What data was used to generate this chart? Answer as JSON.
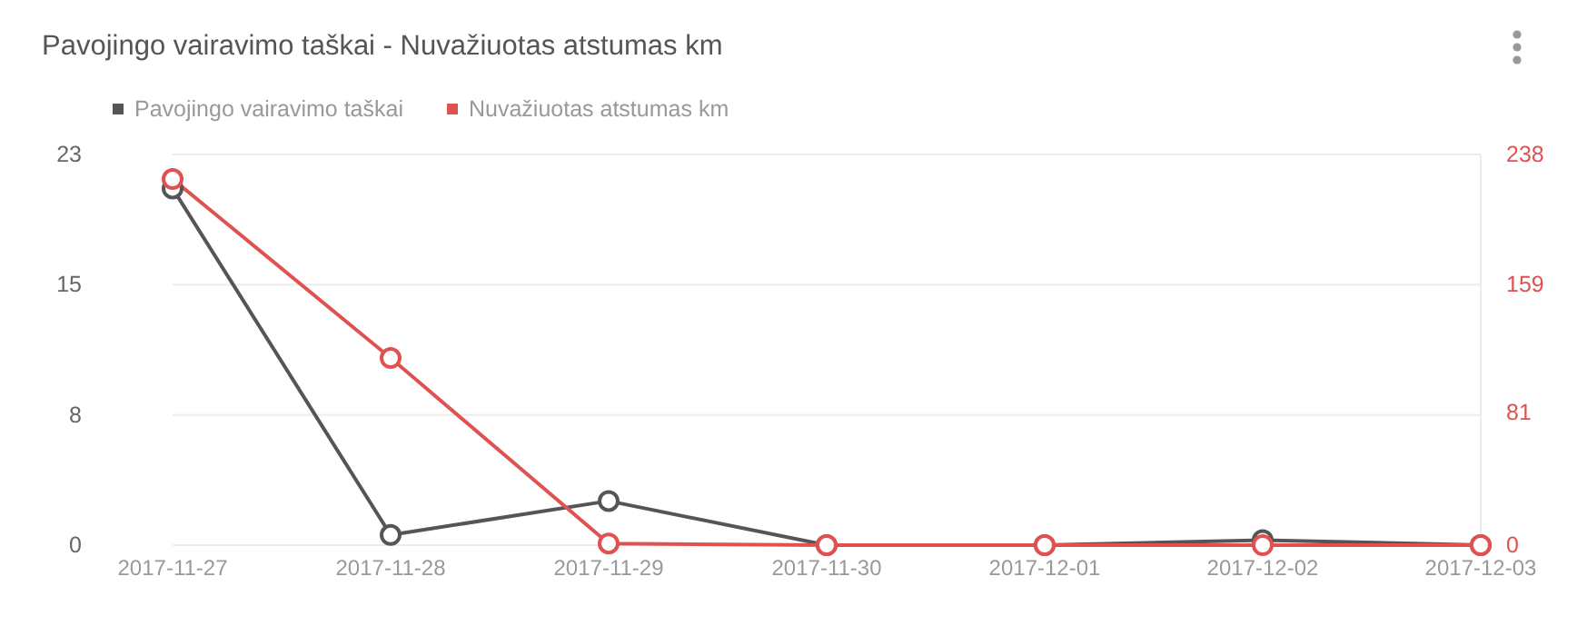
{
  "chart_data": {
    "type": "line",
    "title": "Pavojingo vairavimo taškai - Nuvažiuotas atstumas km",
    "categories": [
      "2017-11-27",
      "2017-11-28",
      "2017-11-29",
      "2017-11-30",
      "2017-12-01",
      "2017-12-02",
      "2017-12-03"
    ],
    "series": [
      {
        "name": "Pavojingo vairavimo taškai",
        "color": "#555555",
        "values": [
          21,
          0.6,
          2.6,
          0,
          0,
          0.3,
          0
        ]
      },
      {
        "name": "Nuvažiuotas atstumas km",
        "color": "#e05252",
        "axis": "y2",
        "values": [
          223,
          114,
          1,
          0,
          0,
          0,
          0
        ]
      }
    ],
    "ylim": [
      0,
      23
    ],
    "yticks": [
      0,
      {
        "value": 7.667,
        "label": "8"
      },
      {
        "value": 15.333,
        "label": "15"
      },
      23
    ],
    "y2lim": [
      0,
      238
    ],
    "y2ticks": [
      0,
      81,
      159,
      238
    ],
    "grid": "y",
    "legend": "top left",
    "marker": "circle",
    "line_style": "solid"
  }
}
